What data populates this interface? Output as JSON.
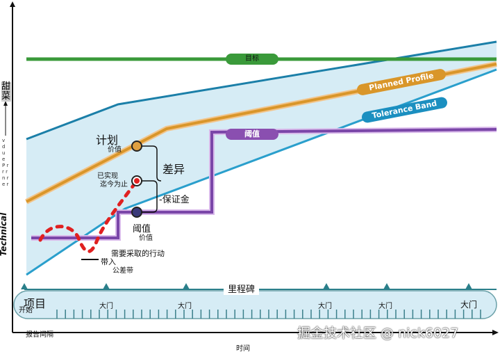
{
  "y_axis": {
    "top_label": "甜菜",
    "vertical_letters": "v d u e P r r r n r e r",
    "bottom_label": "Technical"
  },
  "lines": {
    "target": "目标",
    "threshold": "阈值",
    "planned": "Planned Profile",
    "tolerance": "Tolerance Band"
  },
  "annotations": {
    "plan": "计划",
    "plan_sub": "价值",
    "realized": "已实现",
    "realized_sub": "迄今为止",
    "variance": "差异",
    "margin": "-保证金",
    "threshold": "阈值",
    "threshold_sub": "价值",
    "action": "需要采取的行动",
    "action2": "带入",
    "action3": "公差带"
  },
  "timeline": {
    "milestone": "里程碑",
    "project": "项目",
    "start": "开始",
    "gates": [
      "大门",
      "大门",
      "大门",
      "大门",
      "大门"
    ],
    "report_interval": "报告间隔"
  },
  "x_axis": {
    "label": "时间"
  },
  "watermark": "掘金技术社区 @ nick6027",
  "colors": {
    "target": "#3a9a3a",
    "band": "#d6ecf5",
    "band_line": "#1b7fa8",
    "planned": "#d9962a",
    "threshold": "#8a4fb0",
    "realized": "#e02020"
  }
}
